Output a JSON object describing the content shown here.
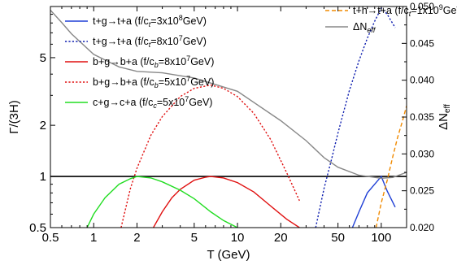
{
  "chart_data": {
    "type": "line",
    "xlabel": "T (GeV)",
    "ylabel_left": "Γ/(3H)",
    "ylabel_right": "ΔN",
    "ylabel_right_sub": "eff",
    "x_scale": "log",
    "xlim": [
      0.5,
      150
    ],
    "x_ticks": [
      0.5,
      1,
      2,
      5,
      10,
      20,
      50,
      100
    ],
    "x_tick_labels": [
      "0.5",
      "1",
      "2",
      "5",
      "10",
      "20",
      "50",
      "100"
    ],
    "y_left_scale": "log",
    "ylim_left": [
      0.5,
      10
    ],
    "y_left_ticks": [
      0.5,
      1,
      2,
      5
    ],
    "y_left_tick_labels": [
      "0.5",
      "1",
      "2",
      "5"
    ],
    "ylim_right": [
      0.02,
      0.05
    ],
    "y_right_ticks": [
      0.02,
      0.025,
      0.03,
      0.035,
      0.04,
      0.045,
      0.05
    ],
    "y_right_tick_labels": [
      "0.020",
      "0.025",
      "0.030",
      "0.035",
      "0.040",
      "0.045",
      "0.050"
    ],
    "reference_line": {
      "y": 1,
      "color": "#000000"
    },
    "legend_placement": "top",
    "series": [
      {
        "name": "t+g→t+a (f/c_t=3x10^8GeV)",
        "label_parts": [
          "t+g→t+a (f/c",
          "t",
          "=3x10",
          "8",
          "GeV)"
        ],
        "color": "#1f3fd6",
        "dash": "solid",
        "axis": "left",
        "x": [
          63,
          70,
          80,
          90,
          100,
          110,
          125
        ],
        "y": [
          0.5,
          0.62,
          0.8,
          0.9,
          1.0,
          0.82,
          0.66
        ]
      },
      {
        "name": "t+g→t+a (f/c_t=8x10^7GeV)",
        "label_parts": [
          "t+g→t+a (f/c",
          "t",
          "=8x10",
          "7",
          "GeV)"
        ],
        "color": "#1020b0",
        "dash": "dotted",
        "axis": "left",
        "x": [
          35,
          40,
          45,
          50,
          60,
          70,
          80,
          90,
          100,
          110,
          125
        ],
        "y": [
          0.5,
          0.85,
          1.25,
          1.8,
          3.2,
          4.8,
          6.5,
          8.2,
          9.8,
          9.0,
          7.5
        ]
      },
      {
        "name": "b+g→b+a (f/c_b=8x10^7GeV)",
        "label_parts": [
          "b+g→b+a (f/c",
          "b",
          "=8x10",
          "7",
          "GeV)"
        ],
        "color": "#e01010",
        "dash": "solid",
        "axis": "left",
        "x": [
          2.6,
          3,
          3.5,
          4,
          5,
          6,
          6.5,
          8,
          10,
          13,
          17,
          22,
          27
        ],
        "y": [
          0.5,
          0.62,
          0.75,
          0.84,
          0.95,
          0.99,
          1.0,
          0.98,
          0.92,
          0.81,
          0.67,
          0.56,
          0.5
        ]
      },
      {
        "name": "b+g→b+a (f/c_b=5x10^7GeV)",
        "label_parts": [
          "b+g→b+a (f/c",
          "b",
          "=5x10",
          "7",
          "GeV)"
        ],
        "color": "#e01010",
        "dash": "dotted",
        "axis": "left",
        "x": [
          1.55,
          1.8,
          2,
          2.5,
          3,
          4,
          5,
          6.5,
          8,
          10,
          13,
          17,
          22,
          27
        ],
        "y": [
          0.5,
          0.85,
          1.12,
          1.75,
          2.25,
          2.95,
          3.3,
          3.45,
          3.3,
          2.95,
          2.35,
          1.65,
          1.05,
          0.72
        ]
      },
      {
        "name": "c+g→c+a (f/c_c=5x10^7GeV)",
        "label_parts": [
          "c+g→c+a (f/c",
          "c",
          "=5x10",
          "7",
          "GeV)"
        ],
        "color": "#22dd22",
        "dash": "solid",
        "axis": "left",
        "x": [
          0.9,
          1,
          1.2,
          1.5,
          1.8,
          2,
          2.5,
          3,
          4,
          5,
          6.5,
          8,
          10
        ],
        "y": [
          0.5,
          0.6,
          0.75,
          0.9,
          0.97,
          1.0,
          0.98,
          0.93,
          0.83,
          0.74,
          0.62,
          0.55,
          0.5
        ]
      },
      {
        "name": "t+h→t+a (f/c_t=1x10^9GeV)",
        "label_parts": [
          "t+h→t+a (f/c",
          "t",
          "=1x10",
          "9",
          "GeV)"
        ],
        "color": "#f08a00",
        "dash": "dashed",
        "axis": "left",
        "x": [
          92,
          100,
          110,
          120,
          130,
          140,
          150
        ],
        "y": [
          0.5,
          0.7,
          0.95,
          1.3,
          1.7,
          2.1,
          2.6
        ]
      },
      {
        "name": "ΔN_eff",
        "label_parts": [
          "ΔN",
          "eff",
          "",
          "",
          ""
        ],
        "color": "#888888",
        "dash": "solid",
        "axis": "right",
        "x": [
          0.5,
          0.6,
          0.7,
          1,
          1.5,
          2,
          3,
          5,
          10,
          20,
          30,
          40,
          50,
          70,
          100,
          120,
          150
        ],
        "y": [
          0.0495,
          0.0478,
          0.0463,
          0.0435,
          0.0418,
          0.0412,
          0.041,
          0.0403,
          0.0385,
          0.0345,
          0.0318,
          0.0295,
          0.0282,
          0.0271,
          0.0267,
          0.0268,
          0.0275
        ]
      }
    ]
  }
}
